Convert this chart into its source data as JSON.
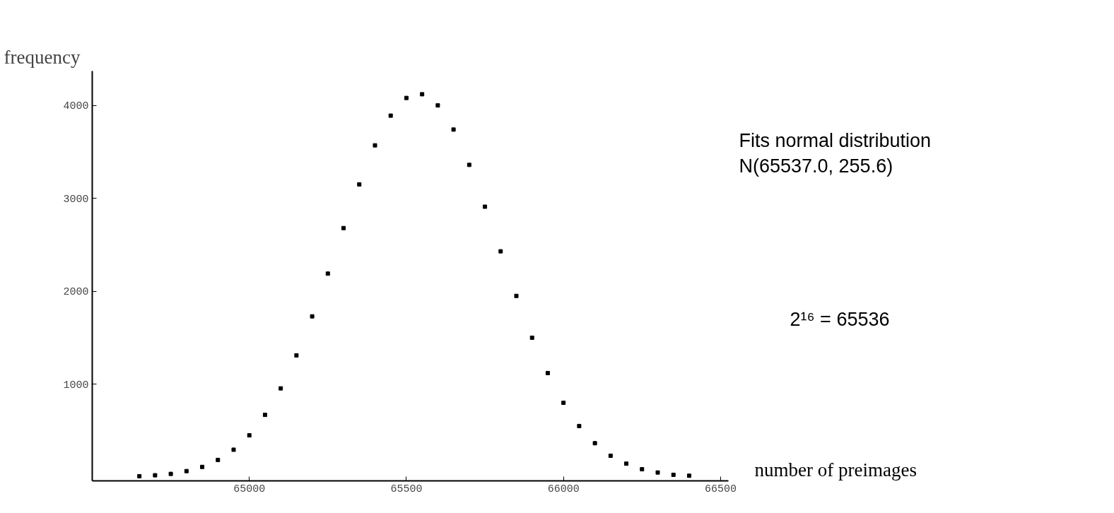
{
  "chart_data": {
    "type": "scatter",
    "xlabel": "number of preimages",
    "ylabel": "frequency",
    "annotations": [
      "Fits normal distribution",
      "N(65537.0, 255.6)",
      "2¹⁶ = 65536"
    ],
    "x": [
      64650,
      64700,
      64750,
      64800,
      64850,
      64900,
      64950,
      65000,
      65050,
      65100,
      65150,
      65200,
      65250,
      65300,
      65350,
      65400,
      65450,
      65500,
      65550,
      65600,
      65650,
      65700,
      65750,
      65800,
      65850,
      65900,
      65950,
      66000,
      66050,
      66100,
      66150,
      66200,
      66250,
      66300,
      66350,
      66400
    ],
    "series": [
      {
        "color": "#000000",
        "values": [
          10,
          20,
          35,
          65,
          110,
          185,
          295,
          450,
          670,
          955,
          1310,
          1730,
          2190,
          2680,
          3150,
          3570,
          3890,
          4080,
          4120,
          4000,
          3740,
          3360,
          2910,
          2430,
          1950,
          1500,
          1120,
          800,
          550,
          365,
          230,
          145,
          85,
          50,
          25,
          15
        ]
      }
    ],
    "xlim": [
      64500,
      66525
    ],
    "ylim": [
      -40,
      4370
    ],
    "xticks": [
      65000,
      65500,
      66000,
      66500
    ],
    "yticks": [
      1000,
      2000,
      3000,
      4000
    ],
    "grid": false,
    "marker": "square"
  }
}
